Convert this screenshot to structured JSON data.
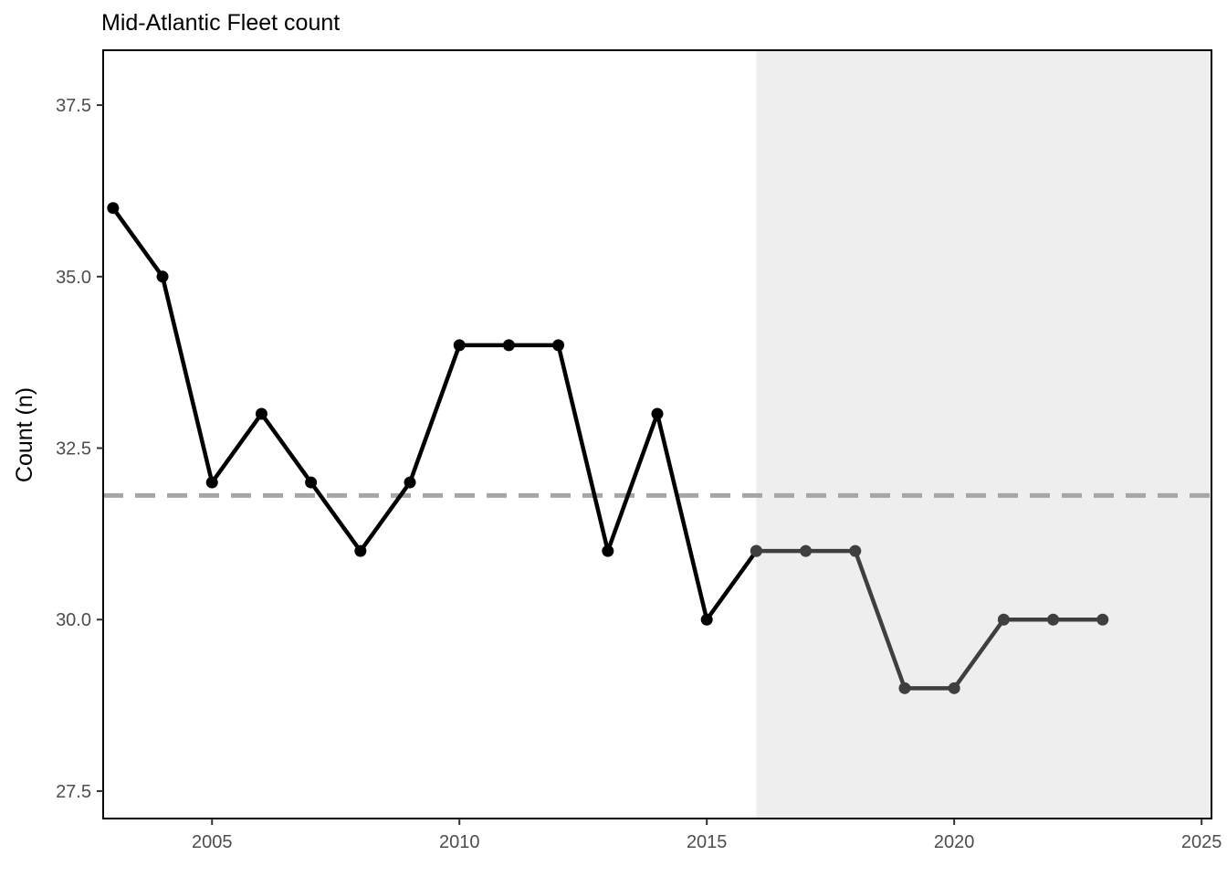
{
  "chart_data": {
    "type": "line",
    "title": "Mid-Atlantic Fleet count",
    "xlabel": "",
    "ylabel": "Count (n)",
    "xlim": [
      2002.8,
      2025.2
    ],
    "ylim": [
      27.1,
      38.3
    ],
    "x_ticks": [
      2005,
      2010,
      2015,
      2020,
      2025
    ],
    "x_tick_labels": [
      "2005",
      "2010",
      "2015",
      "2020",
      "2025"
    ],
    "y_ticks": [
      27.5,
      30.0,
      32.5,
      35.0,
      37.5
    ],
    "y_tick_labels": [
      "27.5",
      "30.0",
      "32.5",
      "35.0",
      "37.5"
    ],
    "grid": false,
    "shaded_region": {
      "x_start": 2016,
      "x_end": 2025.2,
      "color": "#eeeeee"
    },
    "mean_line": {
      "y": 31.81,
      "color": "#a6a6a6",
      "style": "dashed"
    },
    "series": [
      {
        "color": "#000000",
        "x": [
          2003,
          2004,
          2005,
          2006,
          2007,
          2008,
          2009,
          2010,
          2011,
          2012,
          2013,
          2014,
          2015,
          2016
        ],
        "values": [
          36,
          35,
          32,
          33,
          32,
          31,
          32,
          34,
          34,
          34,
          31,
          33,
          30,
          31
        ]
      },
      {
        "color": "#3f3f3f",
        "x": [
          2016,
          2017,
          2018,
          2019,
          2020,
          2021,
          2022,
          2023
        ],
        "values": [
          31,
          31,
          31,
          29,
          29,
          30,
          30,
          30
        ]
      }
    ]
  }
}
